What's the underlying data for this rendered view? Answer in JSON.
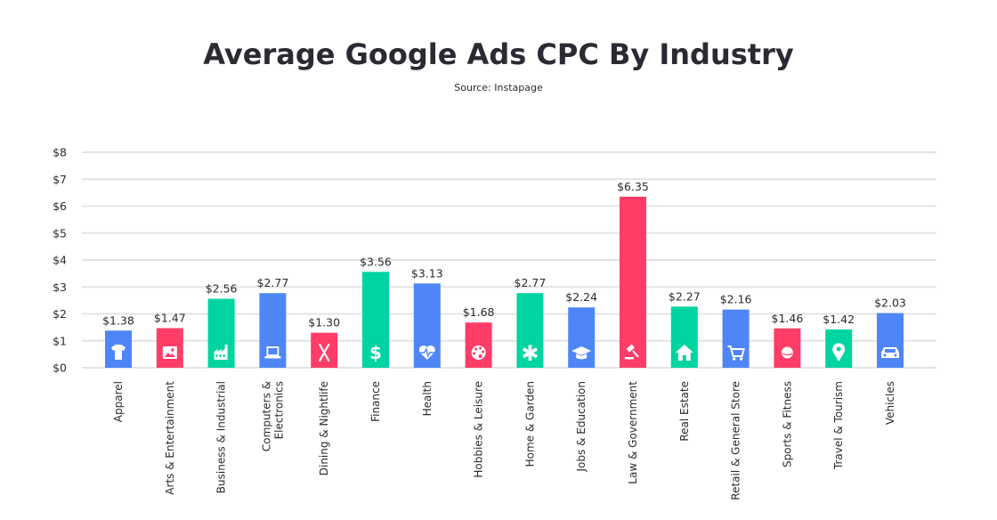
{
  "chart_data": {
    "type": "bar",
    "title": "Average Google Ads CPC By Industry",
    "subtitle": "Source: Instapage",
    "xlabel": "",
    "ylabel": "",
    "ylim": [
      0,
      8
    ],
    "y_ticks": [
      "$0",
      "$1",
      "$2",
      "$3",
      "$4",
      "$5",
      "$6",
      "$7",
      "$8"
    ],
    "grid": true,
    "categories": [
      [
        "Apparel"
      ],
      [
        "Arts & Entertainment"
      ],
      [
        "Business & Industrial"
      ],
      [
        "Computers &",
        "Electronics"
      ],
      [
        "Dining & Nightlife"
      ],
      [
        "Finance"
      ],
      [
        "Health"
      ],
      [
        "Hobbies & Leisure"
      ],
      [
        "Home & Garden"
      ],
      [
        "Jobs & Education"
      ],
      [
        "Law & Government"
      ],
      [
        "Real Estate"
      ],
      [
        "Retail & General Store"
      ],
      [
        "Sports & Fitness"
      ],
      [
        "Travel & Tourism"
      ],
      [
        "Vehicles"
      ]
    ],
    "values": [
      1.38,
      1.47,
      2.56,
      2.77,
      1.3,
      3.56,
      3.13,
      1.68,
      2.77,
      2.24,
      6.35,
      2.27,
      2.16,
      1.46,
      1.42,
      2.03
    ],
    "value_labels": [
      "$1.38",
      "$1.47",
      "$2.56",
      "$2.77",
      "$1.30",
      "$3.56",
      "$3.13",
      "$1.68",
      "$2.77",
      "$2.24",
      "$6.35",
      "$2.27",
      "$2.16",
      "$1.46",
      "$1.42",
      "$2.03"
    ],
    "bar_colors": [
      "#4f86f7",
      "#ff3d67",
      "#00d4a0",
      "#4f86f7",
      "#ff3d67",
      "#00d4a0",
      "#4f86f7",
      "#ff3d67",
      "#00d4a0",
      "#4f86f7",
      "#ff3d67",
      "#00d4a0",
      "#4f86f7",
      "#ff3d67",
      "#00d4a0",
      "#4f86f7"
    ],
    "icons": [
      "shirt-icon",
      "picture-icon",
      "factory-icon",
      "laptop-icon",
      "utensils-icon",
      "dollar-icon",
      "heartbeat-icon",
      "palette-icon",
      "flower-icon",
      "graduation-cap-icon",
      "gavel-icon",
      "house-icon",
      "cart-icon",
      "ball-icon",
      "map-pin-icon",
      "car-icon"
    ]
  },
  "colors": {
    "grid": "#e4e4e4",
    "text": "#2a2a33"
  }
}
